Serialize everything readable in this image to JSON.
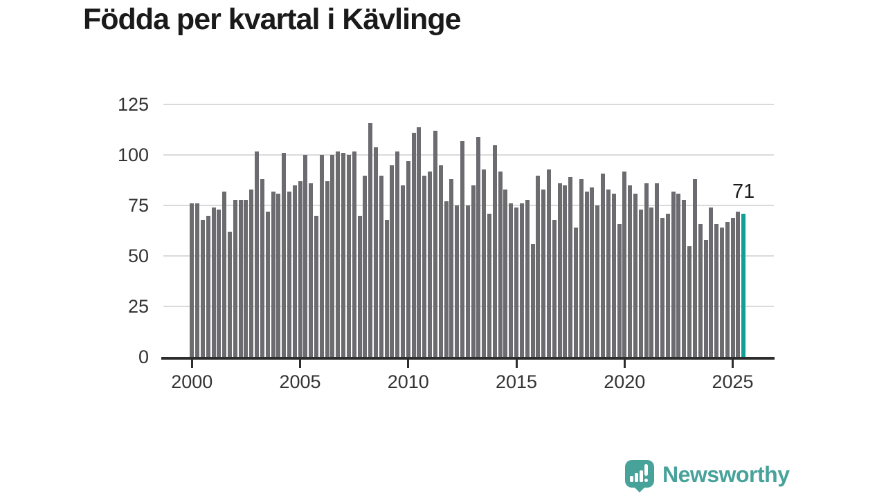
{
  "title": "Födda per kvartal i Kävlinge",
  "annotation": {
    "latest_value_label": "71"
  },
  "branding": {
    "name": "Newsworthy",
    "icon": "bar-chart-speech-bubble-icon"
  },
  "colors": {
    "bar": "#6b6b70",
    "highlight": "#12a096",
    "grid": "#dadada",
    "axis": "#2d2d2d",
    "tick_text": "#333333",
    "title_text": "#1a1a1a",
    "brand": "#47a29a",
    "background": "#ffffff"
  },
  "chart_data": {
    "type": "bar",
    "title": "Födda per kvartal i Kävlinge",
    "x_start": "2000 Q1",
    "x_end": "2025 Q3",
    "x_tick_labels": [
      "2000",
      "2005",
      "2010",
      "2015",
      "2020",
      "2025"
    ],
    "y_ticks": [
      0,
      25,
      50,
      75,
      100,
      125
    ],
    "ylim": [
      0,
      125
    ],
    "grid": "horizontal",
    "legend": "none",
    "highlight_index": 102,
    "highlight_value": 71,
    "values": [
      76,
      76,
      68,
      70,
      74,
      73,
      82,
      62,
      78,
      78,
      78,
      83,
      102,
      88,
      72,
      82,
      81,
      101,
      82,
      85,
      87,
      100,
      86,
      70,
      100,
      87,
      100,
      102,
      101,
      100,
      102,
      70,
      90,
      116,
      104,
      90,
      68,
      95,
      102,
      85,
      97,
      111,
      114,
      90,
      92,
      112,
      95,
      77,
      88,
      75,
      107,
      75,
      85,
      109,
      93,
      71,
      105,
      92,
      83,
      76,
      74,
      76,
      78,
      56,
      90,
      83,
      93,
      68,
      86,
      85,
      89,
      64,
      88,
      82,
      84,
      75,
      91,
      83,
      81,
      66,
      92,
      85,
      81,
      73,
      86,
      74,
      86,
      69,
      71,
      82,
      81,
      78,
      55,
      88,
      66,
      58,
      74,
      66,
      64,
      67,
      69,
      72,
      71
    ]
  }
}
